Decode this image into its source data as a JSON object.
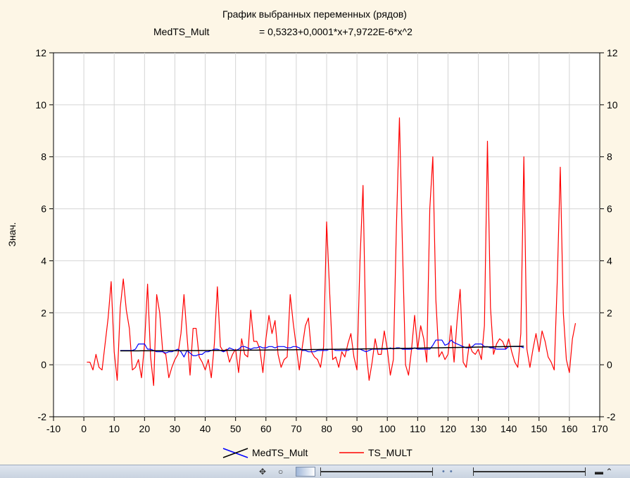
{
  "chart_data": {
    "type": "line",
    "title": "График выбранных переменных (рядов)",
    "subtitle_series": "MedTS_Mult",
    "subtitle_formula": "= 0,5323+0,0001*x+7,9722E-6*x^2",
    "xlabel": "",
    "ylabel": "Знач.",
    "xlim": [
      -10,
      170
    ],
    "ylim": [
      -2,
      12
    ],
    "x_ticks": [
      -10,
      0,
      10,
      20,
      30,
      40,
      50,
      60,
      70,
      80,
      90,
      100,
      110,
      120,
      130,
      140,
      150,
      160,
      170
    ],
    "y_ticks": [
      -2,
      0,
      2,
      4,
      6,
      8,
      10,
      12
    ],
    "grid": true,
    "legend_position": "bottom-center",
    "trend": {
      "series": "MedTS_Mult",
      "x_start": 12,
      "x_end": 145,
      "coefficients": [
        0.5323,
        0.0001,
        7.9722e-06
      ],
      "color": "#000000"
    },
    "series": [
      {
        "name": "MedTS_Mult",
        "color": "#0000ff",
        "x_start": 12,
        "values": [
          0.55,
          0.55,
          0.55,
          0.55,
          0.55,
          0.6,
          0.8,
          0.8,
          0.8,
          0.6,
          0.6,
          0.55,
          0.5,
          0.5,
          0.5,
          0.45,
          0.5,
          0.5,
          0.55,
          0.6,
          0.5,
          0.3,
          0.55,
          0.45,
          0.35,
          0.35,
          0.4,
          0.4,
          0.5,
          0.5,
          0.55,
          0.6,
          0.6,
          0.55,
          0.5,
          0.55,
          0.65,
          0.6,
          0.55,
          0.6,
          0.7,
          0.7,
          0.65,
          0.6,
          0.65,
          0.65,
          0.7,
          0.65,
          0.65,
          0.7,
          0.7,
          0.65,
          0.7,
          0.7,
          0.7,
          0.65,
          0.65,
          0.7,
          0.7,
          0.65,
          0.55,
          0.55,
          0.5,
          0.5,
          0.5,
          0.55,
          0.55,
          0.55,
          0.55,
          0.6,
          0.6,
          0.55,
          0.55,
          0.55,
          0.55,
          0.55,
          0.6,
          0.6,
          0.6,
          0.6,
          0.55,
          0.5,
          0.55,
          0.6,
          0.6,
          0.6,
          0.6,
          0.6,
          0.6,
          0.65,
          0.6,
          0.65,
          0.65,
          0.6,
          0.6,
          0.6,
          0.6,
          0.65,
          0.6,
          0.6,
          0.6,
          0.6,
          0.6,
          0.75,
          0.95,
          0.95,
          0.95,
          0.75,
          0.8,
          0.95,
          0.85,
          0.8,
          0.75,
          0.7,
          0.65,
          0.65,
          0.7,
          0.8,
          0.8,
          0.8,
          0.7,
          0.7,
          0.65,
          0.65,
          0.6,
          0.6,
          0.6,
          0.6,
          0.7,
          0.7,
          0.7,
          0.7,
          0.7,
          0.65
        ]
      },
      {
        "name": "TS_MULT",
        "color": "#ff0000",
        "x_start": 1,
        "values": [
          0.1,
          0.1,
          -0.2,
          0.4,
          -0.1,
          -0.2,
          0.8,
          1.8,
          3.2,
          0.5,
          -0.6,
          2.2,
          3.3,
          2.1,
          1.4,
          -0.2,
          -0.1,
          0.2,
          -0.5,
          0.8,
          3.1,
          0.3,
          -0.8,
          2.7,
          2.0,
          0.5,
          0.4,
          -0.5,
          -0.1,
          0.2,
          0.4,
          1.2,
          2.7,
          1.1,
          -0.4,
          1.4,
          1.4,
          0.3,
          0.1,
          -0.2,
          0.2,
          -0.5,
          0.8,
          3.0,
          0.7,
          0.5,
          0.6,
          0.1,
          0.4,
          0.6,
          -0.3,
          1.0,
          0.4,
          0.3,
          2.1,
          0.9,
          0.9,
          0.6,
          -0.3,
          1.0,
          1.9,
          1.2,
          1.7,
          0.4,
          -0.1,
          0.2,
          0.3,
          2.7,
          1.6,
          0.7,
          -0.2,
          0.7,
          1.5,
          1.8,
          0.5,
          0.3,
          0.2,
          -0.1,
          0.7,
          5.5,
          2.8,
          0.2,
          0.3,
          -0.1,
          0.5,
          0.3,
          0.8,
          1.2,
          0.3,
          -0.2,
          4.0,
          6.9,
          0.6,
          -0.6,
          0.1,
          1.0,
          0.4,
          0.4,
          1.3,
          0.6,
          -0.4,
          0.2,
          5.3,
          9.5,
          4.5,
          0.0,
          -0.4,
          0.6,
          1.9,
          0.6,
          1.5,
          1.0,
          0.1,
          6.0,
          8.0,
          2.5,
          0.3,
          0.5,
          0.2,
          0.4,
          1.5,
          0.1,
          1.7,
          2.9,
          0.1,
          -0.1,
          0.8,
          0.5,
          0.4,
          0.6,
          0.2,
          1.5,
          8.6,
          2.2,
          0.4,
          0.8,
          1.0,
          0.9,
          0.6,
          1.0,
          0.5,
          0.1,
          -0.1,
          1.2,
          8.0,
          0.6,
          -0.1,
          0.6,
          1.2,
          0.5,
          1.3,
          0.9,
          0.3,
          0.1,
          -0.2,
          3.2,
          7.6,
          2.0,
          0.2,
          -0.3,
          1.0,
          1.6
        ]
      }
    ]
  },
  "statusbar": {
    "icon_cursor": "move-cursor-icon",
    "icon_zoom": "zoom-icon",
    "icon_toggle": "toggle-icon"
  }
}
